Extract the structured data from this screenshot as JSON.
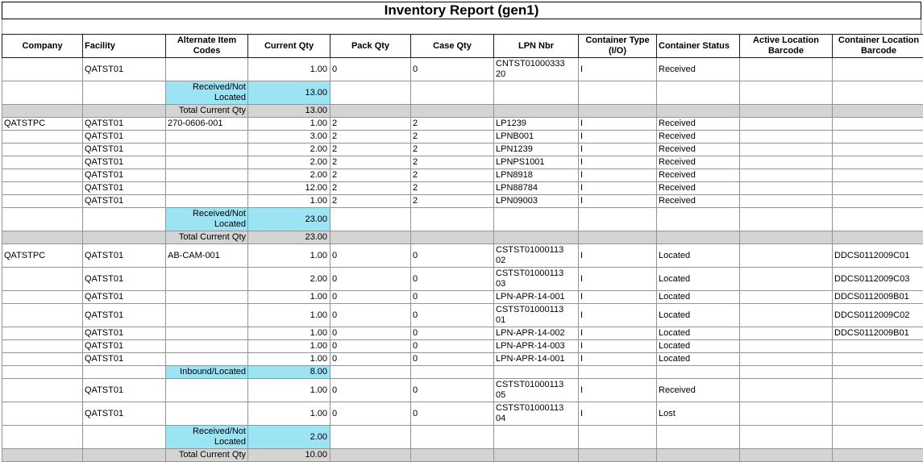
{
  "title": "Inventory Report (gen1)",
  "columns": [
    {
      "key": "company",
      "label": "Company"
    },
    {
      "key": "facility",
      "label": "Facility"
    },
    {
      "key": "alt-item-codes",
      "label": "Alternate Item Codes"
    },
    {
      "key": "current-qty",
      "label": "Current Qty"
    },
    {
      "key": "pack-qty",
      "label": "Pack Qty"
    },
    {
      "key": "case-qty",
      "label": "Case Qty"
    },
    {
      "key": "lpn-nbr",
      "label": "LPN Nbr"
    },
    {
      "key": "container-type",
      "label": "Container Type (I/O)"
    },
    {
      "key": "container-status",
      "label": "Container Status"
    },
    {
      "key": "active-location-barcode",
      "label": "Active Location Barcode"
    },
    {
      "key": "container-location-barcode",
      "label": "Container Location Barcode"
    }
  ],
  "highlight_color": "#9CE3F4",
  "total_row_color": "#D4D4D4",
  "rows": [
    {
      "type": "data",
      "cells": [
        "",
        "QATST01",
        "",
        "1.00",
        "0",
        "0",
        "CNTST0100033320",
        "I",
        "Received",
        "",
        ""
      ]
    },
    {
      "type": "subtotal",
      "cells": [
        "",
        "",
        "Received/Not Located",
        "13.00",
        "",
        "",
        "",
        "",
        "",
        "",
        ""
      ]
    },
    {
      "type": "total",
      "cells": [
        "",
        "",
        "Total Current Qty",
        "13.00",
        "",
        "",
        "",
        "",
        "",
        "",
        ""
      ]
    },
    {
      "type": "data",
      "cells": [
        "QATSTPC",
        "QATST01",
        "270-0606-001",
        "1.00",
        "2",
        "2",
        "LP1239",
        "I",
        "Received",
        "",
        ""
      ]
    },
    {
      "type": "data",
      "cells": [
        "",
        "QATST01",
        "",
        "3.00",
        "2",
        "2",
        "LPNB001",
        "I",
        "Received",
        "",
        ""
      ]
    },
    {
      "type": "data",
      "cells": [
        "",
        "QATST01",
        "",
        "2.00",
        "2",
        "2",
        "LPN1239",
        "I",
        "Received",
        "",
        ""
      ]
    },
    {
      "type": "data",
      "cells": [
        "",
        "QATST01",
        "",
        "2.00",
        "2",
        "2",
        "LPNPS1001",
        "I",
        "Received",
        "",
        ""
      ]
    },
    {
      "type": "data",
      "cells": [
        "",
        "QATST01",
        "",
        "2.00",
        "2",
        "2",
        "LPN8918",
        "I",
        "Received",
        "",
        ""
      ]
    },
    {
      "type": "data",
      "cells": [
        "",
        "QATST01",
        "",
        "12.00",
        "2",
        "2",
        "LPN88784",
        "I",
        "Received",
        "",
        ""
      ]
    },
    {
      "type": "data",
      "cells": [
        "",
        "QATST01",
        "",
        "1.00",
        "2",
        "2",
        "LPN09003",
        "I",
        "Received",
        "",
        ""
      ]
    },
    {
      "type": "subtotal",
      "cells": [
        "",
        "",
        "Received/Not Located",
        "23.00",
        "",
        "",
        "",
        "",
        "",
        "",
        ""
      ]
    },
    {
      "type": "total",
      "cells": [
        "",
        "",
        "Total Current Qty",
        "23.00",
        "",
        "",
        "",
        "",
        "",
        "",
        ""
      ]
    },
    {
      "type": "data",
      "cells": [
        "QATSTPC",
        "QATST01",
        "AB-CAM-001",
        "1.00",
        "0",
        "0",
        "CSTST0100011302",
        "I",
        "Located",
        "",
        "DDCS0112009C01"
      ]
    },
    {
      "type": "data",
      "cells": [
        "",
        "QATST01",
        "",
        "2.00",
        "0",
        "0",
        "CSTST0100011303",
        "I",
        "Located",
        "",
        "DDCS0112009C03"
      ]
    },
    {
      "type": "data",
      "cells": [
        "",
        "QATST01",
        "",
        "1.00",
        "0",
        "0",
        "LPN-APR-14-001",
        "I",
        "Located",
        "",
        "DDCS0112009B01"
      ]
    },
    {
      "type": "data",
      "cells": [
        "",
        "QATST01",
        "",
        "1.00",
        "0",
        "0",
        "CSTST0100011301",
        "I",
        "Located",
        "",
        "DDCS0112009C02"
      ]
    },
    {
      "type": "data",
      "cells": [
        "",
        "QATST01",
        "",
        "1.00",
        "0",
        "0",
        "LPN-APR-14-002",
        "I",
        "Located",
        "",
        "DDCS0112009B01"
      ]
    },
    {
      "type": "data",
      "cells": [
        "",
        "QATST01",
        "",
        "1.00",
        "0",
        "0",
        "LPN-APR-14-003",
        "I",
        "Located",
        "",
        ""
      ]
    },
    {
      "type": "data",
      "cells": [
        "",
        "QATST01",
        "",
        "1.00",
        "0",
        "0",
        "LPN-APR-14-001",
        "I",
        "Located",
        "",
        ""
      ]
    },
    {
      "type": "subtotal",
      "cells": [
        "",
        "",
        "Inbound/Located",
        "8.00",
        "",
        "",
        "",
        "",
        "",
        "",
        ""
      ]
    },
    {
      "type": "data",
      "cells": [
        "",
        "QATST01",
        "",
        "1.00",
        "0",
        "0",
        "CSTST0100011305",
        "I",
        "Received",
        "",
        ""
      ]
    },
    {
      "type": "data",
      "cells": [
        "",
        "QATST01",
        "",
        "1.00",
        "0",
        "0",
        "CSTST0100011304",
        "I",
        "Lost",
        "",
        ""
      ]
    },
    {
      "type": "subtotal",
      "cells": [
        "",
        "",
        "Received/Not Located",
        "2.00",
        "",
        "",
        "",
        "",
        "",
        "",
        ""
      ]
    },
    {
      "type": "total",
      "cells": [
        "",
        "",
        "Total Current Qty",
        "10.00",
        "",
        "",
        "",
        "",
        "",
        "",
        ""
      ]
    }
  ]
}
